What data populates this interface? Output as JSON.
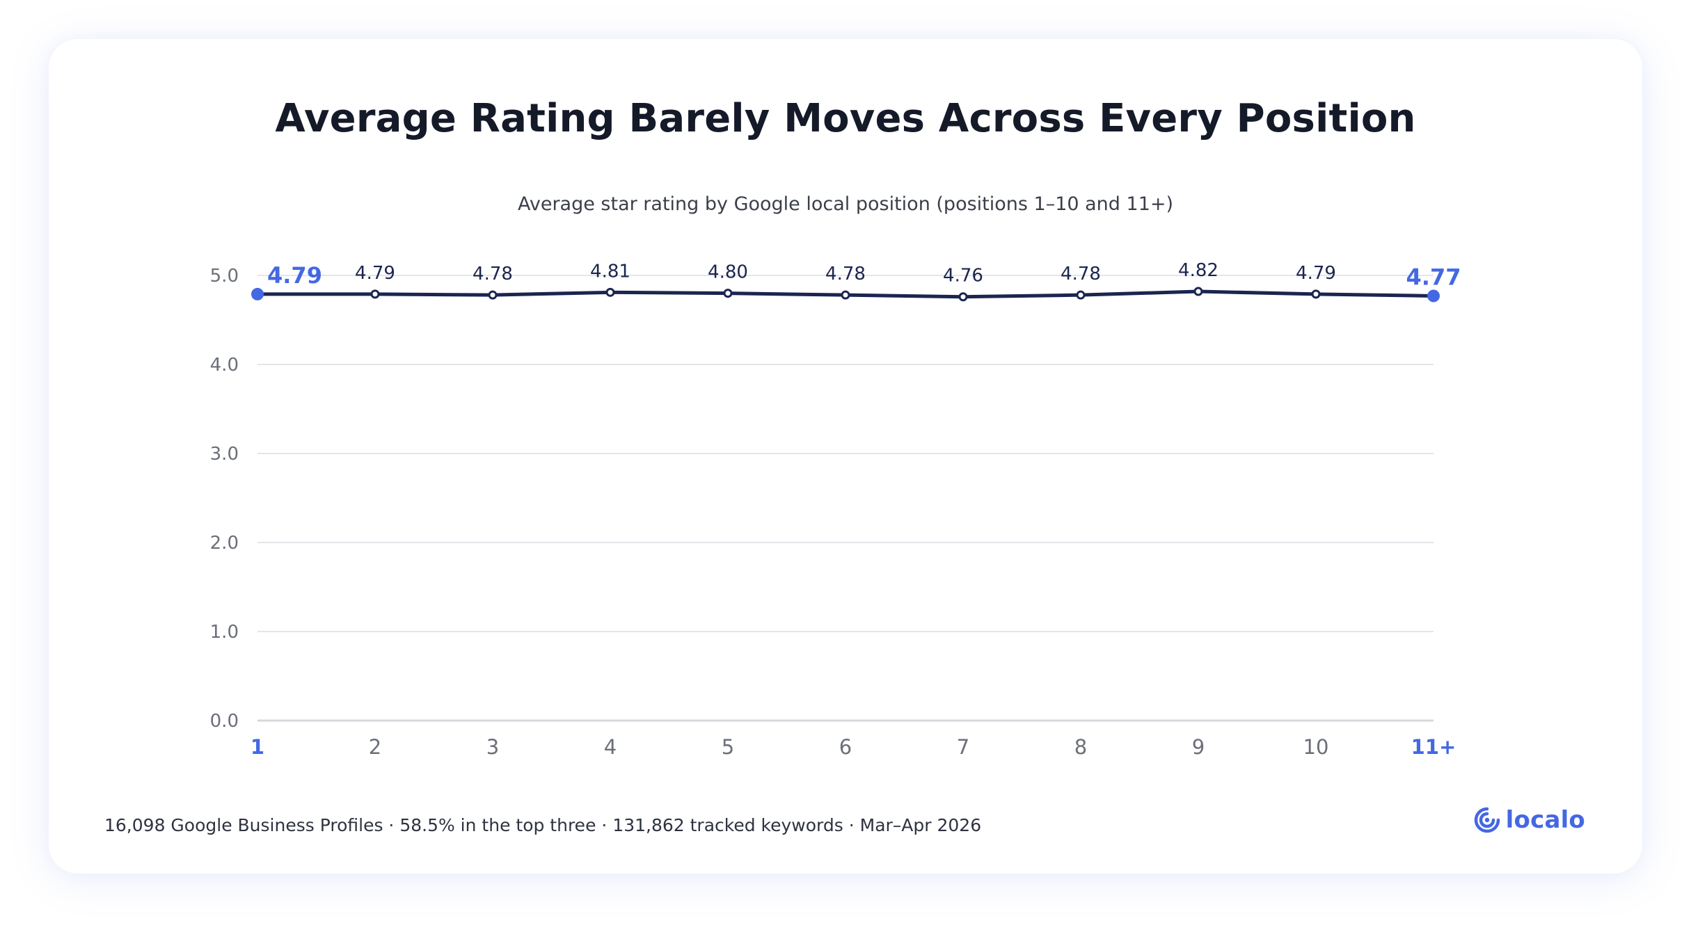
{
  "chart_data": {
    "type": "line",
    "title": "Average Rating Barely Moves Across Every Position",
    "subtitle": "Average star rating by Google local position (positions 1–10 and 11+)",
    "categories": [
      "1",
      "2",
      "3",
      "4",
      "5",
      "6",
      "7",
      "8",
      "9",
      "10",
      "11+"
    ],
    "series": [
      {
        "values": [
          4.79,
          4.79,
          4.78,
          4.81,
          4.8,
          4.78,
          4.76,
          4.78,
          4.82,
          4.79,
          4.77
        ],
        "labels": [
          "4.79",
          "4.79",
          "4.78",
          "4.81",
          "4.80",
          "4.78",
          "4.76",
          "4.78",
          "4.82",
          "4.79",
          "4.77"
        ]
      }
    ],
    "highlighted_categories": [
      "1",
      "11+"
    ],
    "ylim": [
      0,
      5
    ],
    "yticks": [
      "0.0",
      "1.0",
      "2.0",
      "3.0",
      "4.0",
      "5.0"
    ],
    "xlabel": "",
    "ylabel": "",
    "grid": true,
    "colors": {
      "line": "#1b2550",
      "highlight": "#4468e3",
      "grid": "#e4e5e9",
      "axis": "#d5d7dc",
      "tick": "#6b6f78",
      "label": "#1b2550"
    }
  },
  "footer": {
    "note": "16,098 Google Business Profiles · 58.5% in the top three · 131,862 tracked keywords · Mar–Apr 2026"
  },
  "brand": {
    "name": "localo",
    "icon": "localo-logo-icon",
    "color": "#4468e3"
  }
}
